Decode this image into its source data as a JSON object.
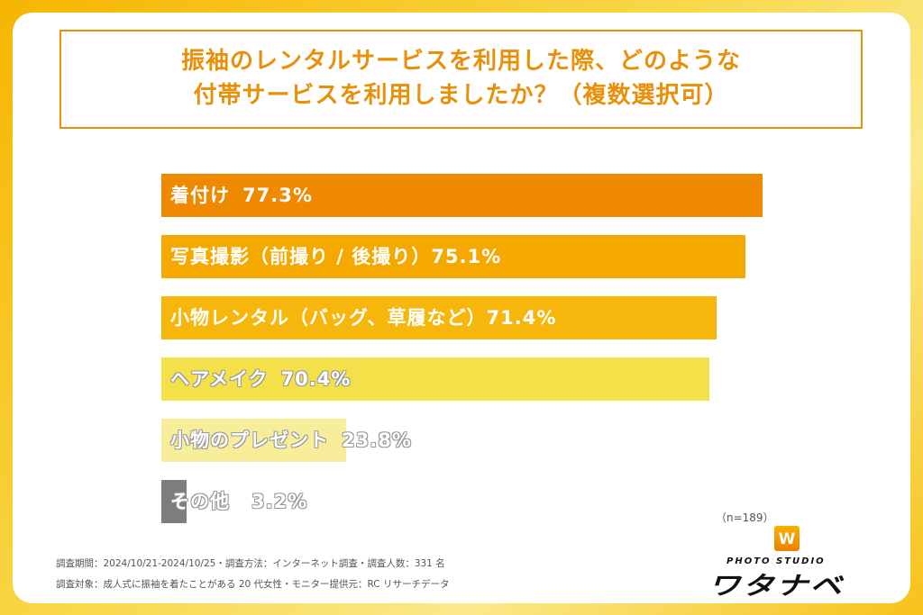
{
  "chart_data": {
    "type": "bar",
    "orientation": "horizontal",
    "title_lines": [
      "振袖のレンタルサービスを利用した際、どのような",
      "付帯サービスを利用しましたか？（複数選択可）"
    ],
    "categories": [
      "着付け",
      "写真撮影（前撮り / 後撮り）",
      "小物レンタル（バッグ、草履など）",
      "ヘアメイク",
      "小物のプレゼント",
      "その他"
    ],
    "values": [
      77.3,
      75.1,
      71.4,
      70.4,
      23.8,
      3.2
    ],
    "value_labels": [
      "77.3%",
      "75.1%",
      "71.4%",
      "70.4%",
      "23.8%",
      "3.2%"
    ],
    "colors": [
      "#ef8a00",
      "#f5a800",
      "#f6b60c",
      "#f4e048",
      "#f8ee9a",
      "#7d7d7d"
    ],
    "xlim": [
      0,
      100
    ],
    "grid": false,
    "sample_size": "（n=189）"
  },
  "footer": {
    "line1": "調査期間：2024/10/21-2024/10/25・調査方法：インターネット調査・調査人数：331 名",
    "line2": "調査対象：成人式に振袖を着たことがある 20 代女性・モニター提供元：RC リサーチデータ"
  },
  "logo": {
    "mark": "W",
    "sub": "PHOTO STUDIO",
    "name": "ワタナベ"
  }
}
